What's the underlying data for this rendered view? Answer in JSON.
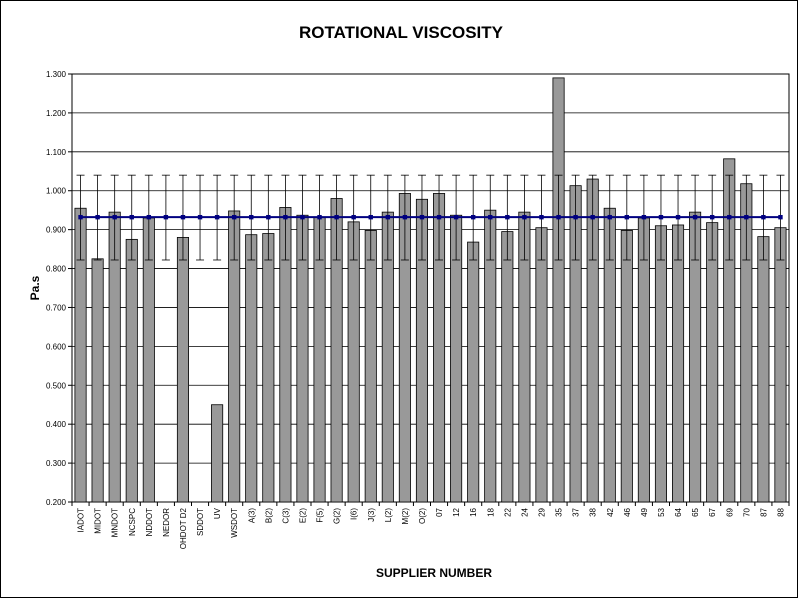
{
  "chart_data": {
    "type": "bar",
    "title": "ROTATIONAL VISCOSITY",
    "xlabel": "SUPPLIER NUMBER",
    "ylabel": "Pa.s",
    "ylim": [
      0.2,
      1.3
    ],
    "yticks": [
      "0.200",
      "0.300",
      "0.400",
      "0.500",
      "0.600",
      "0.700",
      "0.800",
      "0.900",
      "1.000",
      "1.100",
      "1.200",
      "1.300"
    ],
    "grid": true,
    "categories": [
      "IADOT",
      "MIDOT",
      "MNDOT",
      "NCSPC",
      "NDDOT",
      "NEDOR",
      "OHDOT D2",
      "SDDOT",
      "UV",
      "WSDOT",
      "A(3)",
      "B(2)",
      "C(3)",
      "E(2)",
      "F(5)",
      "G(2)",
      "I(6)",
      "J(3)",
      "L(2)",
      "M(2)",
      "O(2)",
      "07",
      "12",
      "16",
      "18",
      "22",
      "24",
      "29",
      "35",
      "37",
      "38",
      "42",
      "46",
      "49",
      "53",
      "64",
      "65",
      "67",
      "69",
      "70",
      "87",
      "88"
    ],
    "series": [
      {
        "type": "bar",
        "values": [
          0.955,
          0.825,
          0.945,
          0.875,
          0.93,
          null,
          0.88,
          null,
          0.45,
          0.948,
          0.887,
          0.89,
          0.957,
          0.937,
          0.932,
          0.98,
          0.92,
          0.898,
          0.945,
          0.993,
          0.978,
          0.993,
          0.937,
          0.868,
          0.95,
          0.895,
          0.945,
          0.905,
          1.29,
          1.013,
          1.03,
          0.955,
          0.898,
          0.93,
          0.91,
          0.912,
          0.945,
          0.918,
          1.082,
          1.018,
          0.882,
          0.905
        ],
        "color": "#999999"
      },
      {
        "type": "line",
        "constant": 0.932,
        "error_high": 1.04,
        "error_low": 0.822,
        "color": "#000080"
      }
    ]
  }
}
